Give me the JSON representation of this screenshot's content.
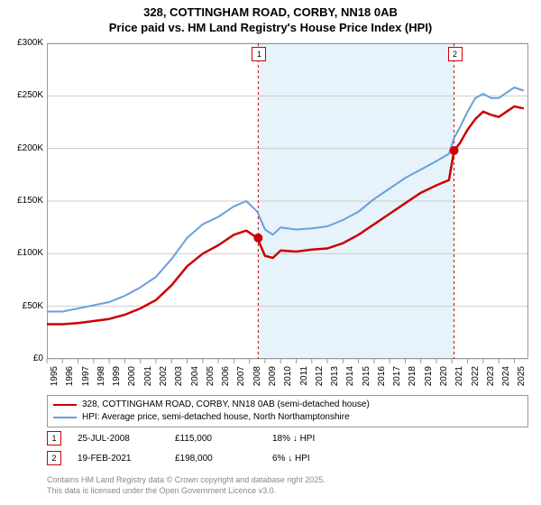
{
  "title_line1": "328, COTTINGHAM ROAD, CORBY, NN18 0AB",
  "title_line2": "Price paid vs. HM Land Registry's House Price Index (HPI)",
  "chart": {
    "type": "line",
    "background_color": "#ffffff",
    "grid_color": "#cccccc",
    "border_color": "#999999",
    "highlight_band_color": "#e6f3fa",
    "ylim": [
      0,
      300000
    ],
    "ytick_step": 50000,
    "ytick_labels": [
      "£0",
      "£50K",
      "£100K",
      "£150K",
      "£200K",
      "£250K",
      "£300K"
    ],
    "xlim": [
      1995,
      2025.9
    ],
    "xticks": [
      1995,
      1996,
      1997,
      1998,
      1999,
      2000,
      2001,
      2002,
      2003,
      2004,
      2005,
      2006,
      2007,
      2008,
      2009,
      2010,
      2011,
      2012,
      2013,
      2014,
      2015,
      2016,
      2017,
      2018,
      2019,
      2020,
      2021,
      2022,
      2023,
      2024,
      2025
    ],
    "series_a": {
      "label": "328, COTTINGHAM ROAD, CORBY, NN18 0AB (semi-detached house)",
      "color": "#cc0000",
      "line_width": 2.5,
      "data": [
        [
          1995.0,
          33000
        ],
        [
          1996.0,
          33000
        ],
        [
          1997.0,
          34000
        ],
        [
          1998.0,
          36000
        ],
        [
          1999.0,
          38000
        ],
        [
          2000.0,
          42000
        ],
        [
          2001.0,
          48000
        ],
        [
          2002.0,
          56000
        ],
        [
          2003.0,
          70000
        ],
        [
          2004.0,
          88000
        ],
        [
          2005.0,
          100000
        ],
        [
          2006.0,
          108000
        ],
        [
          2007.0,
          118000
        ],
        [
          2007.8,
          122000
        ],
        [
          2008.5,
          115000
        ],
        [
          2009.0,
          98000
        ],
        [
          2009.5,
          96000
        ],
        [
          2010.0,
          103000
        ],
        [
          2011.0,
          102000
        ],
        [
          2012.0,
          104000
        ],
        [
          2013.0,
          105000
        ],
        [
          2014.0,
          110000
        ],
        [
          2015.0,
          118000
        ],
        [
          2016.0,
          128000
        ],
        [
          2017.0,
          138000
        ],
        [
          2018.0,
          148000
        ],
        [
          2019.0,
          158000
        ],
        [
          2020.0,
          165000
        ],
        [
          2020.8,
          170000
        ],
        [
          2021.13,
          198000
        ],
        [
          2021.5,
          205000
        ],
        [
          2022.0,
          218000
        ],
        [
          2022.5,
          228000
        ],
        [
          2023.0,
          235000
        ],
        [
          2023.5,
          232000
        ],
        [
          2024.0,
          230000
        ],
        [
          2024.5,
          235000
        ],
        [
          2025.0,
          240000
        ],
        [
          2025.6,
          238000
        ]
      ]
    },
    "series_b": {
      "label": "HPI: Average price, semi-detached house, North Northamptonshire",
      "color": "#6a9edc",
      "line_width": 2,
      "data": [
        [
          1995.0,
          45000
        ],
        [
          1996.0,
          45000
        ],
        [
          1997.0,
          48000
        ],
        [
          1998.0,
          51000
        ],
        [
          1999.0,
          54000
        ],
        [
          2000.0,
          60000
        ],
        [
          2001.0,
          68000
        ],
        [
          2002.0,
          78000
        ],
        [
          2003.0,
          95000
        ],
        [
          2004.0,
          115000
        ],
        [
          2005.0,
          128000
        ],
        [
          2006.0,
          135000
        ],
        [
          2007.0,
          145000
        ],
        [
          2007.8,
          150000
        ],
        [
          2008.5,
          140000
        ],
        [
          2009.0,
          123000
        ],
        [
          2009.5,
          118000
        ],
        [
          2010.0,
          125000
        ],
        [
          2011.0,
          123000
        ],
        [
          2012.0,
          124000
        ],
        [
          2013.0,
          126000
        ],
        [
          2014.0,
          132000
        ],
        [
          2015.0,
          140000
        ],
        [
          2016.0,
          152000
        ],
        [
          2017.0,
          162000
        ],
        [
          2018.0,
          172000
        ],
        [
          2019.0,
          180000
        ],
        [
          2020.0,
          188000
        ],
        [
          2020.8,
          195000
        ],
        [
          2021.13,
          210000
        ],
        [
          2021.5,
          220000
        ],
        [
          2022.0,
          235000
        ],
        [
          2022.5,
          248000
        ],
        [
          2023.0,
          252000
        ],
        [
          2023.5,
          248000
        ],
        [
          2024.0,
          248000
        ],
        [
          2024.5,
          253000
        ],
        [
          2025.0,
          258000
        ],
        [
          2025.6,
          255000
        ]
      ]
    },
    "sale_markers": [
      {
        "n": "1",
        "x": 2008.56,
        "y": 115000,
        "date": "25-JUL-2008",
        "price": "£115,000",
        "diff": "18% ↓ HPI"
      },
      {
        "n": "2",
        "x": 2021.13,
        "y": 198000,
        "date": "19-FEB-2021",
        "price": "£198,000",
        "diff": "6% ↓ HPI"
      }
    ],
    "legend_border": "#999999",
    "label_fontsize": 10
  },
  "license_line1": "Contains HM Land Registry data © Crown copyright and database right 2025.",
  "license_line2": "This data is licensed under the Open Government Licence v3.0."
}
